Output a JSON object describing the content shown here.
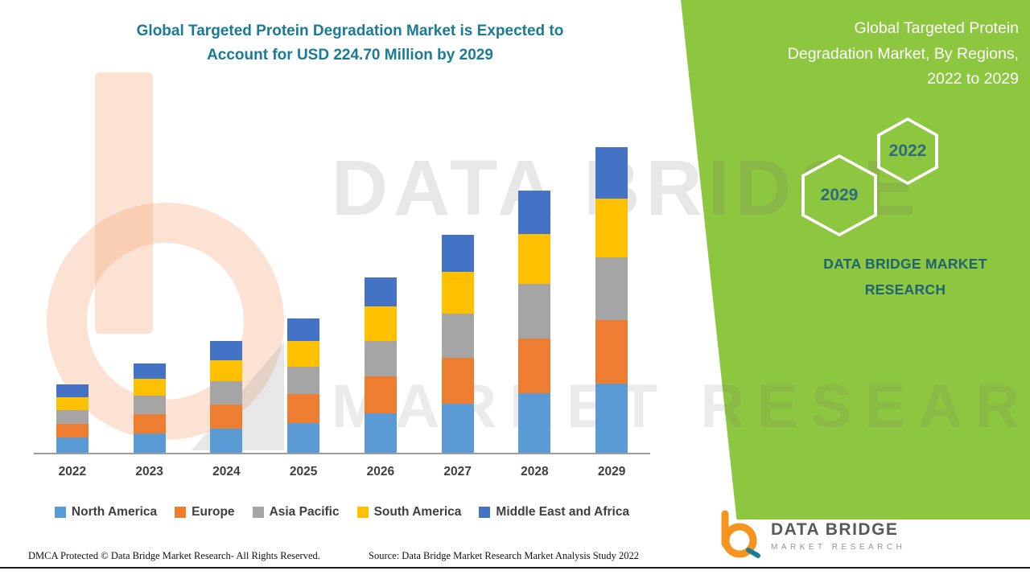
{
  "header": {
    "left_title_lines": [
      "Global Targeted Protein Degradation Market is Expected to",
      "Account for USD 224.70 Million by 2029"
    ],
    "right_title_lines": [
      "Global Targeted Protein",
      "Degradation Market, By Regions,",
      "2022 to 2029"
    ]
  },
  "side_panel": {
    "color": "#8DC63F",
    "hexagon_badges": [
      {
        "label": "2022"
      },
      {
        "label": "2029"
      }
    ],
    "brand_caption_lines": [
      "DATA BRIDGE MARKET",
      "RESEARCH"
    ]
  },
  "watermark": {
    "line1": "DATA BRIDGE",
    "line2": "MARKET RESEARCH"
  },
  "chart_data": {
    "type": "bar",
    "stacked": true,
    "title": "Global Targeted Protein Degradation Market is Expected to Account for USD 224.70 Million by 2029",
    "unit": "USD Million",
    "categories": [
      "2022",
      "2023",
      "2024",
      "2025",
      "2026",
      "2027",
      "2028",
      "2029"
    ],
    "series": [
      {
        "name": "North America",
        "color": "#5B9BD5",
        "values": [
          11,
          14.5,
          18,
          22,
          29,
          36,
          43.5,
          50.7
        ]
      },
      {
        "name": "Europe",
        "color": "#ED7D31",
        "values": [
          10.5,
          14,
          17.5,
          21,
          27,
          33.5,
          40.5,
          47
        ]
      },
      {
        "name": "Asia Pacific",
        "color": "#A5A5A5",
        "values": [
          10,
          13.5,
          17,
          20.5,
          26.5,
          33,
          40,
          46
        ]
      },
      {
        "name": "South America",
        "color": "#FFC000",
        "values": [
          9.5,
          12.5,
          15.5,
          19,
          25,
          30.5,
          37,
          43
        ]
      },
      {
        "name": "Middle East and Africa",
        "color": "#4472C4",
        "values": [
          9,
          11.5,
          14,
          16.5,
          21.5,
          27,
          32,
          38
        ]
      }
    ],
    "totals": [
      50,
      66,
      82,
      99,
      129,
      160,
      193,
      224.7
    ],
    "xlabel": "",
    "ylabel": "",
    "ylim": [
      0,
      240
    ],
    "grid": false,
    "legend_position": "bottom",
    "y_axis_visible": false
  },
  "footer": {
    "dmca": "DMCA Protected © Data Bridge Market Research- All Rights Reserved.",
    "source": "Source: Data Bridge Market Research Market Analysis Study 2022"
  },
  "logo": {
    "name": "DATA BRIDGE",
    "subtitle": "MARKET RESEARCH"
  }
}
